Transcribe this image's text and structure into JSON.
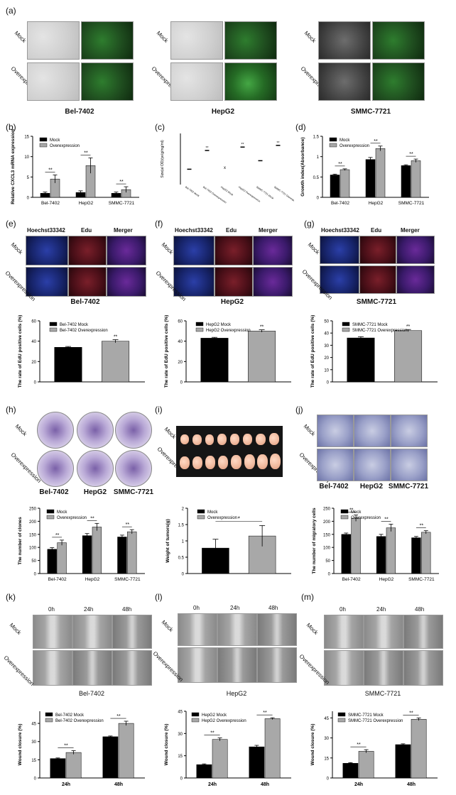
{
  "panels": {
    "a": "(a)",
    "b": "(b)",
    "c": "(c)",
    "d": "(d)",
    "e": "(e)",
    "f": "(f)",
    "g": "(g)",
    "h": "(h)",
    "i": "(i)",
    "j": "(j)",
    "k": "(k)",
    "l": "(l)",
    "m": "(m)"
  },
  "row_labels": {
    "mock": "Mock",
    "over": "Overexpression"
  },
  "cell_lines": {
    "bel": "Bel-7402",
    "hep": "HepG2",
    "smmc": "SMMC-7721"
  },
  "edu_cols": {
    "hoechst": "Hoechst33342",
    "edu": "Edu",
    "merger": "Merger"
  },
  "wound_cols": {
    "t0": "0h",
    "t24": "24h",
    "t48": "48h"
  },
  "chart_data": [
    {
      "id": "b",
      "type": "bar",
      "ylabel": "Relative CXCL3 mRNA expression",
      "categories": [
        "Bel-7402",
        "HepG2",
        "SMMC-7721"
      ],
      "series": [
        {
          "name": "Mock",
          "values": [
            1.0,
            1.2,
            1.0
          ],
          "err": [
            0.3,
            0.4,
            0.3
          ]
        },
        {
          "name": "Overexpression",
          "values": [
            4.5,
            7.8,
            1.9
          ],
          "err": [
            1.0,
            1.9,
            0.7
          ]
        }
      ],
      "ylim": [
        0,
        15
      ],
      "yticks": [
        0,
        5,
        10,
        15
      ],
      "sig": [
        "**",
        "**",
        "**"
      ]
    },
    {
      "id": "c",
      "type": "scatter",
      "ylabel": "Size(al OD)/ye/g/mg/ml)",
      "categories": [
        "Bel-7402 Mock",
        "Bel-7402 Overexpression",
        "HepG2 Mock",
        "HepG2 Overexpression",
        "SMMC-7721 Mock",
        "SMMC-7721 Overexpression"
      ],
      "values": [
        0.9,
        2.0,
        1.0,
        2.2,
        1.4,
        2.3
      ],
      "ylim": [
        0,
        3
      ],
      "sig": [
        "",
        "**",
        "",
        "**",
        "",
        "**"
      ]
    },
    {
      "id": "d",
      "type": "bar",
      "ylabel": "Growth index(Absorbance)",
      "categories": [
        "Bel-7402",
        "HepG2",
        "SMMC-7721"
      ],
      "series": [
        {
          "name": "Mock",
          "values": [
            0.55,
            0.93,
            0.78
          ],
          "err": [
            0.02,
            0.05,
            0.02
          ]
        },
        {
          "name": "Overexpression",
          "values": [
            0.68,
            1.2,
            0.9
          ],
          "err": [
            0.02,
            0.06,
            0.04
          ]
        }
      ],
      "ylim": [
        0,
        1.5
      ],
      "yticks": [
        0.0,
        0.5,
        1.0,
        1.5
      ],
      "sig": [
        "**",
        "**",
        "**"
      ]
    },
    {
      "id": "e2",
      "type": "bar",
      "ylabel": "The rate of EdU positive cells (%)",
      "categories": [
        "Bel-7402 Mock",
        "Bel-7402 Overexpression"
      ],
      "series": [
        {
          "name": "rate",
          "values": [
            34,
            40
          ],
          "err": [
            0.8,
            1.5
          ]
        }
      ],
      "legend": [
        "Bel-7402 Mock",
        "Bel-7402 Overexpression"
      ],
      "ylim": [
        0,
        60
      ],
      "yticks": [
        0,
        20,
        40,
        60
      ],
      "sig": [
        "**"
      ]
    },
    {
      "id": "f2",
      "type": "bar",
      "ylabel": "The rate of EdU positive cells (%)",
      "categories": [
        "HepG2 Mock",
        "HepG2 Overexpression"
      ],
      "series": [
        {
          "name": "rate",
          "values": [
            43,
            50
          ],
          "err": [
            0.8,
            1.2
          ]
        }
      ],
      "legend": [
        "HepG2 Mock",
        "HepG2 Overexpression"
      ],
      "ylim": [
        0,
        60
      ],
      "yticks": [
        0,
        20,
        40,
        60
      ],
      "sig": [
        "**"
      ]
    },
    {
      "id": "g2",
      "type": "bar",
      "ylabel": "The rate of EdU positive cells (%)",
      "categories": [
        "SMMC-7721 Mock",
        "SMMC-7721 Overexpression"
      ],
      "series": [
        {
          "name": "rate",
          "values": [
            36,
            42
          ],
          "err": [
            1.0,
            0.9
          ]
        }
      ],
      "legend": [
        "SMMC-7721 Mock",
        "SMMC-7721 Overexpression"
      ],
      "ylim": [
        0,
        50
      ],
      "yticks": [
        0,
        10,
        20,
        30,
        40,
        50
      ],
      "sig": [
        "**"
      ]
    },
    {
      "id": "h2",
      "type": "bar",
      "ylabel": "The number of clones",
      "categories": [
        "Bel-7402",
        "HepG2",
        "SMMC-7721"
      ],
      "series": [
        {
          "name": "Mock",
          "values": [
            93,
            145,
            140
          ],
          "err": [
            6,
            8,
            7
          ]
        },
        {
          "name": "Overexpression",
          "values": [
            118,
            178,
            160
          ],
          "err": [
            10,
            14,
            8
          ]
        }
      ],
      "ylim": [
        0,
        250
      ],
      "yticks": [
        0,
        50,
        100,
        150,
        200,
        250
      ],
      "sig": [
        "**",
        "**",
        "**"
      ]
    },
    {
      "id": "i2",
      "type": "bar",
      "ylabel": "Weight of tumors(g)",
      "categories": [
        "Mock",
        "Overexpression"
      ],
      "series": [
        {
          "name": "weight",
          "values": [
            0.78,
            1.15
          ],
          "err": [
            0.27,
            0.32
          ]
        }
      ],
      "legend": [
        "Mock",
        "Overexpression"
      ],
      "ylim": [
        0,
        2.0
      ],
      "yticks": [
        0,
        0.5,
        1.0,
        1.5,
        2.0
      ],
      "sig": [
        "*"
      ]
    },
    {
      "id": "j2",
      "type": "bar",
      "ylabel": "The number of migratory cells",
      "categories": [
        "Bel-7402",
        "HepG2",
        "SMMC-7721"
      ],
      "series": [
        {
          "name": "Mock",
          "values": [
            150,
            142,
            137
          ],
          "err": [
            5,
            8,
            5
          ]
        },
        {
          "name": "Overexpression",
          "values": [
            212,
            175,
            158
          ],
          "err": [
            12,
            14,
            6
          ]
        }
      ],
      "ylim": [
        0,
        250
      ],
      "yticks": [
        0,
        50,
        100,
        150,
        200,
        250
      ],
      "sig": [
        "**",
        "**",
        "**"
      ]
    },
    {
      "id": "k2",
      "type": "bar",
      "ylabel": "Wound closure (%)",
      "categories": [
        "24h",
        "48h"
      ],
      "series": [
        {
          "name": "Bel-7402 Mock",
          "values": [
            16,
            34
          ],
          "err": [
            0.5,
            0.6
          ]
        },
        {
          "name": "Bel-7402 Overexpression",
          "values": [
            21,
            45
          ],
          "err": [
            1.5,
            1.8
          ]
        }
      ],
      "ylim": [
        0,
        55
      ],
      "yticks": [
        0,
        15,
        30,
        45
      ],
      "sig": [
        "**",
        "**"
      ]
    },
    {
      "id": "l2",
      "type": "bar",
      "ylabel": "Wound closure (%)",
      "categories": [
        "24h",
        "48h"
      ],
      "series": [
        {
          "name": "HepG2 Mock",
          "values": [
            9,
            21
          ],
          "err": [
            0.5,
            1.0
          ]
        },
        {
          "name": "HepG2 Overexpression",
          "values": [
            26,
            40
          ],
          "err": [
            1.0,
            0.6
          ]
        }
      ],
      "ylim": [
        0,
        45
      ],
      "yticks": [
        0,
        15,
        30,
        45
      ],
      "sig": [
        "**",
        "**"
      ]
    },
    {
      "id": "m2",
      "type": "bar",
      "ylabel": "Wound closure (%)",
      "categories": [
        "24h",
        "48h"
      ],
      "series": [
        {
          "name": "SMMC-7721 Mock",
          "values": [
            11,
            25
          ],
          "err": [
            0.5,
            0.6
          ]
        },
        {
          "name": "SMMC-7721 Overexpression",
          "values": [
            20,
            44
          ],
          "err": [
            1.2,
            1.0
          ]
        }
      ],
      "ylim": [
        0,
        50
      ],
      "yticks": [
        0,
        15,
        30,
        45
      ],
      "sig": [
        "**",
        "**"
      ]
    }
  ]
}
